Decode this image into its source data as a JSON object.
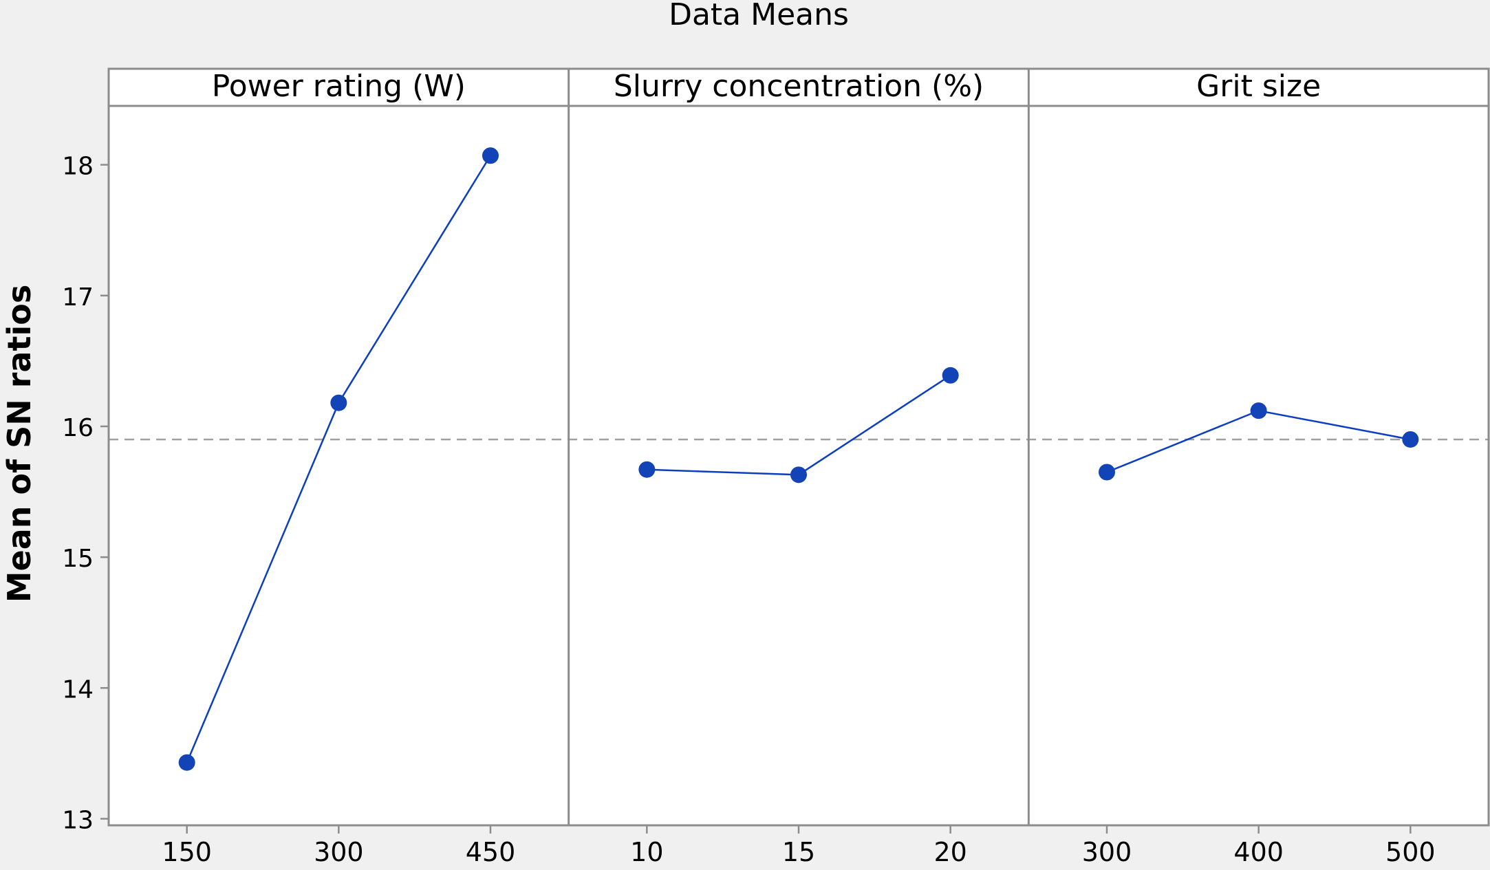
{
  "chart_data": {
    "type": "line",
    "title": "Data Means",
    "ylabel": "Mean of SN ratios",
    "ylim": [
      12.95,
      18.45
    ],
    "yticks": [
      "13",
      "14",
      "15",
      "16",
      "17",
      "18"
    ],
    "reference_line": 15.9,
    "grid": false,
    "legend": "none",
    "panels": [
      {
        "name": "Power rating (W)",
        "x": [
          "150",
          "300",
          "450"
        ],
        "values": [
          13.43,
          16.18,
          18.07
        ]
      },
      {
        "name": "Slurry concentration (%)",
        "x": [
          "10",
          "15",
          "20"
        ],
        "values": [
          15.67,
          15.63,
          16.39
        ]
      },
      {
        "name": "Grit size",
        "x": [
          "300",
          "400",
          "500"
        ],
        "values": [
          15.65,
          16.12,
          15.9
        ]
      }
    ]
  },
  "colors": {
    "background": "#f0f0f0",
    "panel": "#ffffff",
    "frame": "#8c8c8c",
    "series": "#0b3fbf",
    "marker": "#1244b8",
    "reference": "#a0a0a0"
  }
}
